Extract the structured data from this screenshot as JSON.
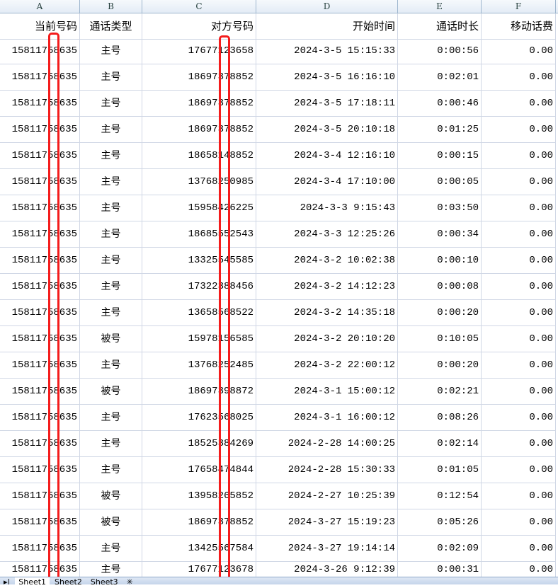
{
  "columns": [
    "A",
    "B",
    "C",
    "D",
    "E",
    "F"
  ],
  "headers": [
    "当前号码",
    "通话类型",
    "对方号码",
    "开始时间",
    "通话时长",
    "移动话费"
  ],
  "rows": [
    [
      "15811758635",
      "主号",
      "17677123658",
      "2024-3-5 15:15:33",
      "0:00:56",
      "0.00"
    ],
    [
      "15811758635",
      "主号",
      "18697378852",
      "2024-3-5 16:16:10",
      "0:02:01",
      "0.00"
    ],
    [
      "15811758635",
      "主号",
      "18697378852",
      "2024-3-5 17:18:11",
      "0:00:46",
      "0.00"
    ],
    [
      "15811758635",
      "主号",
      "18697378852",
      "2024-3-5 20:10:18",
      "0:01:25",
      "0.00"
    ],
    [
      "15811758635",
      "主号",
      "18658148852",
      "2024-3-4 12:16:10",
      "0:00:15",
      "0.00"
    ],
    [
      "15811758635",
      "主号",
      "13768250985",
      "2024-3-4 17:10:00",
      "0:00:05",
      "0.00"
    ],
    [
      "15811758635",
      "主号",
      "15958426225",
      "2024-3-3 9:15:43",
      "0:03:50",
      "0.00"
    ],
    [
      "15811758635",
      "主号",
      "18685552543",
      "2024-3-3 12:25:26",
      "0:00:34",
      "0.00"
    ],
    [
      "15811758635",
      "主号",
      "13325545585",
      "2024-3-2 10:02:38",
      "0:00:10",
      "0.00"
    ],
    [
      "15811758635",
      "主号",
      "17322388456",
      "2024-3-2 14:12:23",
      "0:00:08",
      "0.00"
    ],
    [
      "15811758635",
      "主号",
      "13658568522",
      "2024-3-2 14:35:18",
      "0:00:20",
      "0.00"
    ],
    [
      "15811758635",
      "被号",
      "15978156585",
      "2024-3-2 20:10:20",
      "0:10:05",
      "0.00"
    ],
    [
      "15811758635",
      "主号",
      "13768252485",
      "2024-3-2 22:00:12",
      "0:00:20",
      "0.00"
    ],
    [
      "15811758635",
      "被号",
      "18697398872",
      "2024-3-1 15:00:12",
      "0:02:21",
      "0.00"
    ],
    [
      "15811758635",
      "主号",
      "17623568025",
      "2024-3-1 16:00:12",
      "0:08:26",
      "0.00"
    ],
    [
      "15811758635",
      "主号",
      "18525384269",
      "2024-2-28 14:00:25",
      "0:02:14",
      "0.00"
    ],
    [
      "15811758635",
      "主号",
      "17658474844",
      "2024-2-28 15:30:33",
      "0:01:05",
      "0.00"
    ],
    [
      "15811758635",
      "被号",
      "13958265852",
      "2024-2-27 10:25:39",
      "0:12:54",
      "0.00"
    ],
    [
      "15811758635",
      "被号",
      "18697378852",
      "2024-3-27 15:19:23",
      "0:05:26",
      "0.00"
    ],
    [
      "15811758635",
      "主号",
      "13425567584",
      "2024-3-27 19:14:14",
      "0:02:09",
      "0.00"
    ],
    [
      "15811758635",
      "主号",
      "17677123678",
      "2024-3-26 9:12:39",
      "0:00:31",
      "0.00"
    ]
  ],
  "sheet_tabs": [
    "Sheet1",
    "Sheet2",
    "Sheet3"
  ],
  "active_tab": "Sheet1",
  "colors": {
    "redaction": "#f41c1c",
    "grid": "#d0d7e5",
    "header_bg": "#e4ecf6"
  }
}
